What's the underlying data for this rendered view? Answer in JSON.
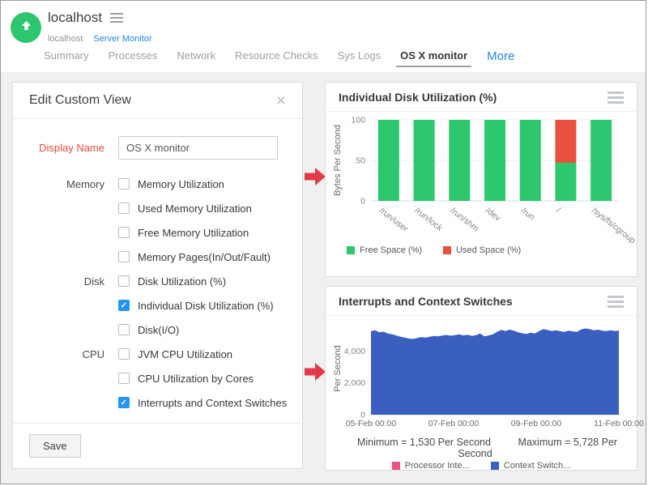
{
  "header": {
    "title": "localhost",
    "breadcrumb": {
      "parent": "localhost",
      "link": "Server Monitor"
    },
    "tabs": [
      {
        "label": "Summary",
        "active": false
      },
      {
        "label": "Processes",
        "active": false
      },
      {
        "label": "Network",
        "active": false
      },
      {
        "label": "Resource Checks",
        "active": false
      },
      {
        "label": "Sys Logs",
        "active": false
      },
      {
        "label": "OS X monitor",
        "active": true
      }
    ],
    "more_label": "More"
  },
  "panel": {
    "title": "Edit Custom View",
    "close_label": "×",
    "display_name": {
      "label": "Display Name",
      "value": "OS X monitor"
    },
    "groups": [
      {
        "label": "Memory",
        "options": [
          {
            "label": "Memory Utilization",
            "checked": false
          },
          {
            "label": "Used Memory Utilization",
            "checked": false
          },
          {
            "label": "Free Memory Utilization",
            "checked": false
          },
          {
            "label": "Memory Pages(In/Out/Fault)",
            "checked": false
          }
        ]
      },
      {
        "label": "Disk",
        "options": [
          {
            "label": "Disk Utilization (%)",
            "checked": false
          },
          {
            "label": "Individual Disk Utilization (%)",
            "checked": true
          },
          {
            "label": "Disk(I/O)",
            "checked": false
          }
        ]
      },
      {
        "label": "CPU",
        "options": [
          {
            "label": "JVM CPU Utilization",
            "checked": false
          },
          {
            "label": "CPU Utilization by Cores",
            "checked": false
          },
          {
            "label": "Interrupts and Context Switches",
            "checked": true
          }
        ]
      }
    ],
    "save_label": "Save"
  },
  "cards": [
    {
      "title": "Individual Disk Utilization (%)"
    },
    {
      "title": "Interrupts and Context Switches"
    }
  ],
  "colors": {
    "status_green": "#2ec56f",
    "bar_green": "#2dc76d",
    "bar_red": "#e8513d",
    "area_blue": "#3b5fc0",
    "legend_pink": "#ee4d86",
    "checkbox_blue": "#2196f3",
    "link_blue": "#2386e0",
    "label_red": "#e74c3c",
    "arrow_red": "#e13b49"
  },
  "chart_data": [
    {
      "type": "bar",
      "stacked": true,
      "title": "Individual Disk Utilization (%)",
      "ylabel": "Bytes Per Second",
      "ylim": [
        0,
        100
      ],
      "yticks": [
        0,
        50,
        100
      ],
      "grid": true,
      "legend_position": "bottom-left",
      "categories": [
        "/run/user",
        "/run/lock",
        "/run/shm",
        "/dev",
        "/run",
        "/",
        "/sys/fs/cgroup"
      ],
      "series": [
        {
          "name": "Free Space (%)",
          "color": "#2dc76d",
          "values": [
            100,
            100,
            100,
            100,
            100,
            47,
            100
          ]
        },
        {
          "name": "Used Space (%)",
          "color": "#e8513d",
          "values": [
            0,
            0,
            0,
            0,
            0,
            53,
            0
          ]
        }
      ]
    },
    {
      "type": "area",
      "title": "Interrupts and Context Switches",
      "ylabel": "Per Second",
      "ylim": [
        0,
        5800
      ],
      "yticks": [
        0,
        2000,
        4000
      ],
      "grid": true,
      "legend_position": "bottom-center",
      "xticklabels": [
        "05-Feb 00:00",
        "07-Feb 00:00",
        "09-Feb 00:00",
        "11-Feb 00:00"
      ],
      "annotations": [
        "Minimum = 1,530 Per Second",
        "Maximum = 5,728 Per Second"
      ],
      "series": [
        {
          "name": "Processor Inte...",
          "color": "#ee4d86",
          "values": []
        },
        {
          "name": "Context Switch...",
          "color": "#3b5fc0",
          "values": [
            5250,
            5300,
            5180,
            5220,
            5100,
            5050,
            4980,
            4900,
            4850,
            4780,
            4760,
            4820,
            4880,
            4850,
            4900,
            4950,
            4920,
            4980,
            5010,
            4960,
            5000,
            5050,
            4980,
            5020,
            4950,
            5000,
            5100,
            4920,
            4980,
            5050,
            5200,
            5320,
            5260,
            5340,
            5280,
            5180,
            5120,
            5080,
            5150,
            5100,
            5250,
            5380,
            5320,
            5260,
            5300,
            5250,
            5200,
            5280,
            5240,
            5200,
            5350,
            5420,
            5380,
            5300,
            5340,
            5280,
            5250,
            5300,
            5260,
            5280
          ]
        }
      ]
    }
  ]
}
